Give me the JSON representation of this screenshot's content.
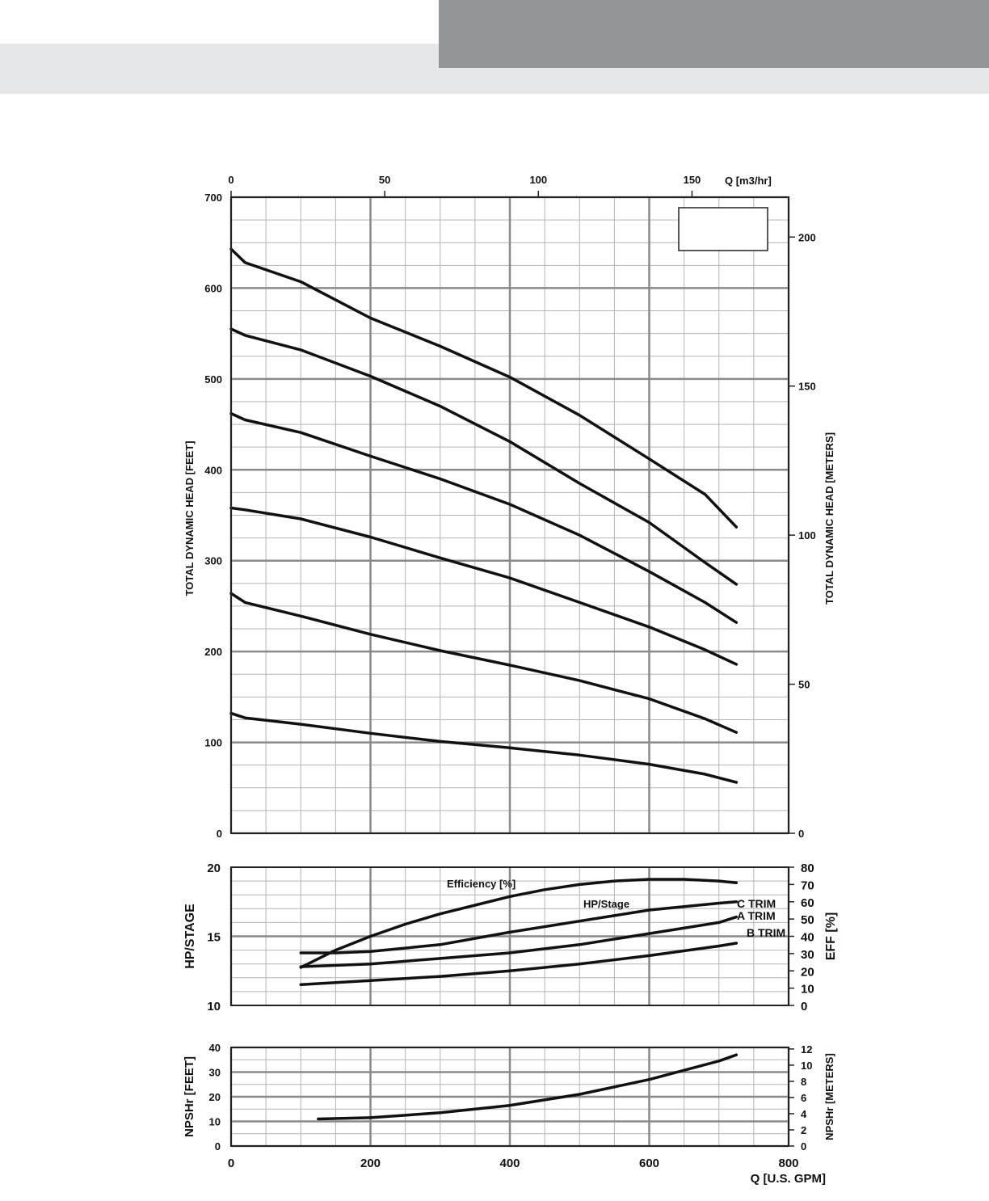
{
  "header": {
    "band_light_color": "#e6e7e8",
    "band_dark_color": "#939598"
  },
  "colors": {
    "curve": "#111111",
    "grid_major": "#8a8a8a",
    "grid_minor": "#b4b4b4",
    "frame": "#222222"
  },
  "chart_data": [
    {
      "type": "line",
      "id": "head",
      "xlabel": "",
      "xlim": [
        0,
        800
      ],
      "ylabel": "TOTAL DYNAMIC HEAD [FEET]",
      "ylim": [
        0,
        700
      ],
      "y_ticks": [
        0,
        100,
        200,
        300,
        400,
        500,
        600,
        700
      ],
      "secondary_x": {
        "label": "Q [m3/hr]",
        "ticks": [
          0,
          50,
          100,
          150
        ]
      },
      "secondary_y": {
        "label": "TOTAL DYNAMIC HEAD [METERS]",
        "ticks": [
          0,
          50,
          100,
          150,
          200
        ],
        "ylim": [
          0,
          213.36
        ]
      },
      "grid": true,
      "legend_box": true,
      "series": [
        {
          "x": [
            0,
            20,
            100,
            200,
            300,
            400,
            500,
            600,
            680,
            725
          ],
          "y": [
            643,
            628,
            607,
            567,
            536,
            502,
            460,
            412,
            373,
            337
          ]
        },
        {
          "x": [
            0,
            20,
            100,
            200,
            300,
            400,
            500,
            600,
            680,
            725
          ],
          "y": [
            555,
            548,
            532,
            503,
            470,
            431,
            385,
            342,
            298,
            274
          ]
        },
        {
          "x": [
            0,
            20,
            100,
            200,
            300,
            400,
            500,
            600,
            680,
            725
          ],
          "y": [
            462,
            455,
            441,
            415,
            390,
            362,
            328,
            288,
            254,
            232
          ]
        },
        {
          "x": [
            0,
            20,
            100,
            200,
            300,
            400,
            500,
            600,
            680,
            725
          ],
          "y": [
            358,
            356,
            346,
            326,
            303,
            281,
            254,
            227,
            202,
            186
          ]
        },
        {
          "x": [
            0,
            20,
            100,
            200,
            300,
            400,
            500,
            600,
            680,
            725
          ],
          "y": [
            264,
            254,
            239,
            219,
            201,
            185,
            168,
            148,
            126,
            111
          ]
        },
        {
          "x": [
            0,
            20,
            100,
            200,
            300,
            400,
            500,
            600,
            680,
            725
          ],
          "y": [
            132,
            127,
            120,
            110,
            101,
            94,
            86,
            76,
            65,
            56
          ]
        }
      ]
    },
    {
      "type": "line",
      "id": "hp-eff",
      "xlim": [
        0,
        800
      ],
      "ylabel": "HP/STAGE",
      "ylim": [
        10,
        20
      ],
      "y_ticks": [
        10,
        15,
        20
      ],
      "secondary_y": {
        "label": "EFF [%]",
        "ticks": [
          0,
          10,
          20,
          30,
          40,
          50,
          60,
          70,
          80
        ],
        "ylim": [
          0,
          80
        ]
      },
      "grid": true,
      "annotations": [
        "Efficiency [%]",
        "HP/Stage",
        "C TRIM",
        "A TRIM",
        "B TRIM"
      ],
      "efficiency_series": {
        "x": [
          100,
          150,
          200,
          250,
          300,
          350,
          400,
          450,
          500,
          550,
          600,
          650,
          700,
          725
        ],
        "y": [
          22,
          32,
          40,
          47,
          53,
          58,
          63,
          67,
          70,
          72,
          73,
          73,
          72,
          71
        ]
      },
      "series": [
        {
          "x": [
            100,
            150,
            200,
            300,
            400,
            500,
            600,
            700,
            725
          ],
          "y": [
            13.8,
            13.8,
            13.9,
            14.4,
            15.3,
            16.1,
            16.9,
            17.4,
            17.5
          ]
        },
        {
          "x": [
            100,
            200,
            300,
            400,
            500,
            600,
            700,
            725
          ],
          "y": [
            12.8,
            13.0,
            13.4,
            13.8,
            14.4,
            15.2,
            16.0,
            16.4
          ]
        },
        {
          "x": [
            100,
            200,
            300,
            400,
            500,
            600,
            700,
            725
          ],
          "y": [
            11.5,
            11.8,
            12.1,
            12.5,
            13.0,
            13.6,
            14.3,
            14.5
          ]
        }
      ]
    },
    {
      "type": "line",
      "id": "npshr",
      "xlabel": "Q [U.S. GPM]",
      "xlim": [
        0,
        800
      ],
      "x_ticks": [
        0,
        200,
        400,
        600,
        800
      ],
      "ylabel": "NPSHr [FEET]",
      "ylim": [
        0,
        40
      ],
      "y_ticks": [
        0,
        10,
        20,
        30,
        40
      ],
      "secondary_y": {
        "label": "NPSHr [METERS]",
        "ticks": [
          0,
          2,
          4,
          6,
          8,
          10,
          12
        ],
        "ylim": [
          0,
          12.19
        ]
      },
      "grid": true,
      "series": [
        {
          "x": [
            125,
            200,
            300,
            400,
            500,
            600,
            700,
            725
          ],
          "y": [
            11,
            11.5,
            13.5,
            16.5,
            21,
            27,
            34.5,
            37
          ]
        }
      ]
    }
  ]
}
